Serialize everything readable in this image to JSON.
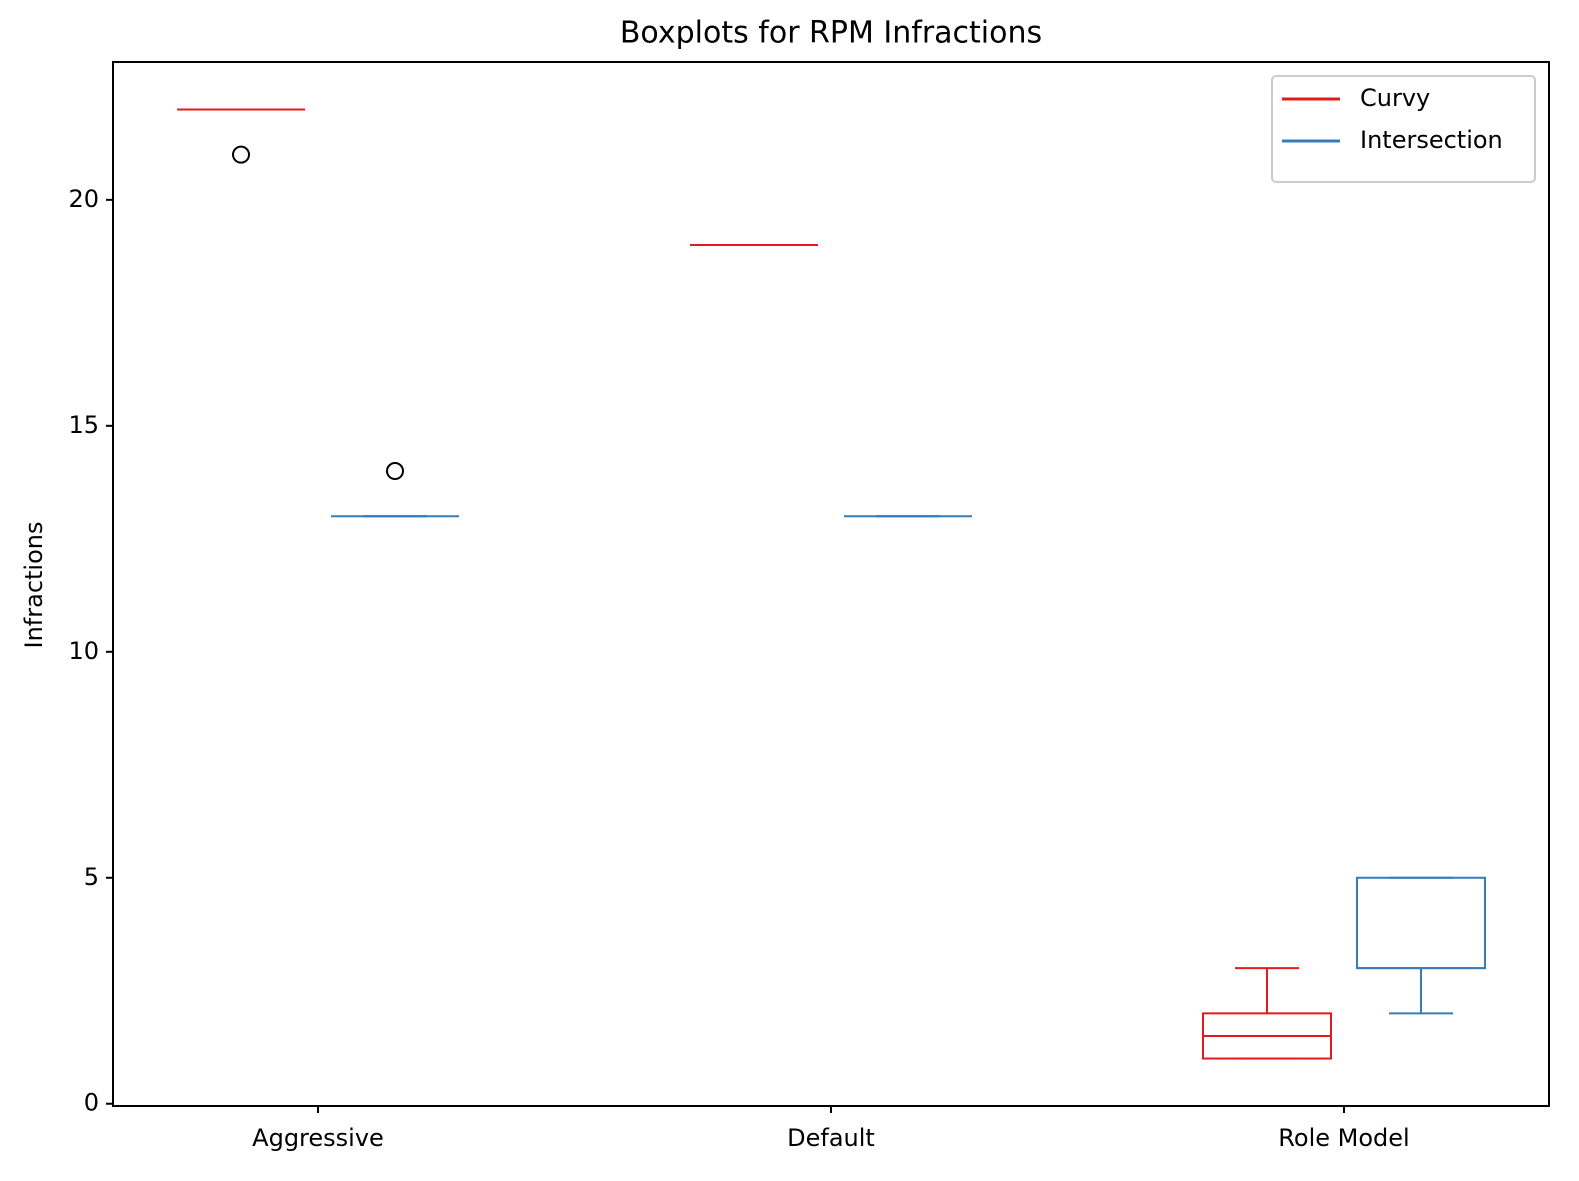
{
  "chart_data": {
    "type": "box",
    "title": "Boxplots for RPM Infractions",
    "y_label": "Infractions",
    "categories": [
      "Aggressive",
      "Default",
      "Role Model"
    ],
    "ylim": [
      -0.05,
      23.05
    ],
    "yticks": [
      0,
      5,
      10,
      15,
      20
    ],
    "legend": "upper right",
    "series": [
      {
        "name": "Curvy",
        "color": "#e41a1c",
        "min": [
          22,
          19,
          1
        ],
        "q1": [
          22,
          19,
          1
        ],
        "median": [
          22,
          19,
          1.5
        ],
        "q3": [
          22,
          19,
          2
        ],
        "max": [
          22,
          19,
          3
        ],
        "outliers": [
          [
            21
          ],
          [],
          []
        ]
      },
      {
        "name": "Intersection",
        "color": "#377eb8",
        "min": [
          13,
          13,
          2
        ],
        "q1": [
          13,
          13,
          3
        ],
        "median": [
          13,
          13,
          3
        ],
        "q3": [
          13,
          13,
          5
        ],
        "max": [
          13,
          13,
          5
        ],
        "outliers": [
          [
            14
          ],
          [],
          []
        ]
      }
    ]
  }
}
